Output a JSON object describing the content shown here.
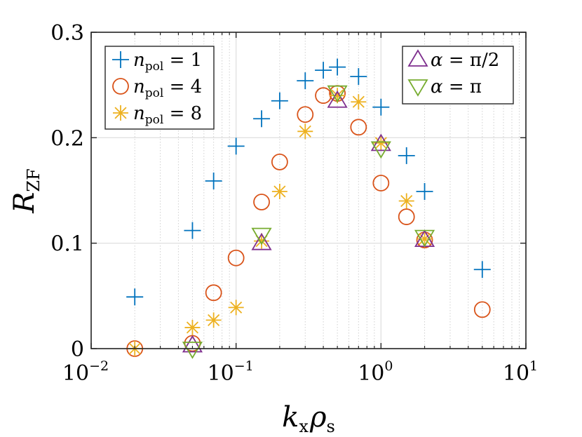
{
  "chart_data": {
    "type": "scatter",
    "xscale": "log",
    "xlim": [
      0.01,
      10
    ],
    "ylim": [
      0,
      0.3
    ],
    "grid": true,
    "xlabel": {
      "main": "k",
      "sub1": "x",
      "mid": "ρ",
      "sub2": "s"
    },
    "ylabel": {
      "main": "R",
      "sub": "ZF"
    },
    "xticks": [
      {
        "value": 0.01,
        "base": "10",
        "exp": "−2"
      },
      {
        "value": 0.1,
        "base": "10",
        "exp": "−1"
      },
      {
        "value": 1,
        "base": "10",
        "exp": "0"
      },
      {
        "value": 10,
        "base": "10",
        "exp": "1"
      }
    ],
    "yticks": [
      {
        "value": 0,
        "label": "0"
      },
      {
        "value": 0.1,
        "label": "0.1"
      },
      {
        "value": 0.2,
        "label": "0.2"
      },
      {
        "value": 0.3,
        "label": "0.3"
      }
    ],
    "series": [
      {
        "name": "n_pol = 1",
        "marker": "plus",
        "color": "#0072BD",
        "legend_parts": {
          "var": "n",
          "sub": "pol",
          "rest": " = 1"
        },
        "legend_box": 0,
        "x": [
          0.02,
          0.05,
          0.07,
          0.1,
          0.15,
          0.2,
          0.3,
          0.4,
          0.5,
          0.7,
          1,
          1.5,
          2,
          5
        ],
        "y": [
          0.049,
          0.112,
          0.159,
          0.192,
          0.218,
          0.235,
          0.254,
          0.264,
          0.267,
          0.258,
          0.229,
          0.183,
          0.149,
          0.075
        ]
      },
      {
        "name": "n_pol = 4",
        "marker": "circle",
        "color": "#D95319",
        "legend_parts": {
          "var": "n",
          "sub": "pol",
          "rest": " = 4"
        },
        "legend_box": 0,
        "x": [
          0.02,
          0.05,
          0.07,
          0.1,
          0.15,
          0.2,
          0.3,
          0.4,
          0.5,
          0.7,
          1,
          1.5,
          2,
          5
        ],
        "y": [
          0.0,
          0.005,
          0.053,
          0.086,
          0.139,
          0.177,
          0.222,
          0.24,
          0.242,
          0.21,
          0.157,
          0.125,
          0.103,
          0.037
        ]
      },
      {
        "name": "n_pol = 8",
        "marker": "asterisk",
        "color": "#EDB120",
        "legend_parts": {
          "var": "n",
          "sub": "pol",
          "rest": " = 8"
        },
        "legend_box": 0,
        "x": [
          0.02,
          0.05,
          0.07,
          0.1,
          0.15,
          0.2,
          0.3,
          0.5,
          0.7,
          1,
          1.5,
          2
        ],
        "y": [
          0.0,
          0.02,
          0.027,
          0.039,
          0.102,
          0.149,
          0.206,
          0.24,
          0.234,
          0.195,
          0.14,
          0.104
        ]
      },
      {
        "name": "α = π/2",
        "marker": "triangle-up",
        "color": "#7E2F8E",
        "legend_parts": {
          "var": "α",
          "sub": "",
          "rest": " = π/2"
        },
        "legend_box": 1,
        "x": [
          0.05,
          0.15,
          0.5,
          1,
          2
        ],
        "y": [
          0.003,
          0.1,
          0.235,
          0.194,
          0.103
        ]
      },
      {
        "name": "α = π",
        "marker": "triangle-down",
        "color": "#77AC30",
        "legend_parts": {
          "var": "α",
          "sub": "",
          "rest": " = π"
        },
        "legend_box": 1,
        "x": [
          0.05,
          0.15,
          0.5,
          1,
          2
        ],
        "y": [
          0.0,
          0.108,
          0.243,
          0.19,
          0.106
        ]
      }
    ]
  }
}
